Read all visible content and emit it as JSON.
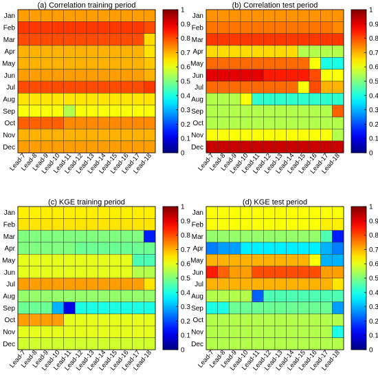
{
  "chart_data": [
    {
      "type": "heatmap",
      "title": "(a) Correlation training period",
      "rows": [
        "Jan",
        "Feb",
        "Mar",
        "Apr",
        "May",
        "Jun",
        "Jul",
        "Aug",
        "Sep",
        "Oct",
        "Nov",
        "Dec"
      ],
      "columns": [
        "Lead-7",
        "Lead-8",
        "Lead-9",
        "Lead-10",
        "Lead-11",
        "Lead-12",
        "Lead-13",
        "Lead-14",
        "Lead-15",
        "Lead-16",
        "Lead-17",
        "Lead-18"
      ],
      "colorbar": {
        "min": 0,
        "max": 1,
        "ticks": [
          "0",
          "0.1",
          "0.2",
          "0.3",
          "0.4",
          "0.5",
          "0.6",
          "0.7",
          "0.8",
          "0.9",
          "1"
        ]
      },
      "values": [
        [
          0.72,
          0.72,
          0.72,
          0.72,
          0.72,
          0.72,
          0.72,
          0.72,
          0.72,
          0.72,
          0.72,
          0.72
        ],
        [
          0.82,
          0.82,
          0.82,
          0.82,
          0.82,
          0.82,
          0.82,
          0.82,
          0.82,
          0.82,
          0.82,
          0.8
        ],
        [
          0.8,
          0.8,
          0.8,
          0.8,
          0.8,
          0.8,
          0.8,
          0.8,
          0.8,
          0.8,
          0.8,
          0.66
        ],
        [
          0.7,
          0.7,
          0.7,
          0.7,
          0.7,
          0.7,
          0.7,
          0.7,
          0.7,
          0.7,
          0.7,
          0.65
        ],
        [
          0.7,
          0.7,
          0.7,
          0.7,
          0.7,
          0.7,
          0.7,
          0.7,
          0.7,
          0.7,
          0.7,
          0.68
        ],
        [
          0.72,
          0.72,
          0.72,
          0.72,
          0.72,
          0.72,
          0.72,
          0.72,
          0.72,
          0.72,
          0.72,
          0.7
        ],
        [
          0.8,
          0.8,
          0.8,
          0.8,
          0.8,
          0.8,
          0.8,
          0.8,
          0.8,
          0.8,
          0.8,
          0.82
        ],
        [
          0.65,
          0.65,
          0.65,
          0.65,
          0.65,
          0.65,
          0.65,
          0.65,
          0.65,
          0.65,
          0.65,
          0.65
        ],
        [
          0.62,
          0.62,
          0.62,
          0.62,
          0.55,
          0.62,
          0.62,
          0.62,
          0.62,
          0.62,
          0.62,
          0.62
        ],
        [
          0.78,
          0.78,
          0.78,
          0.78,
          0.74,
          0.74,
          0.74,
          0.74,
          0.74,
          0.74,
          0.74,
          0.74
        ],
        [
          0.7,
          0.7,
          0.7,
          0.7,
          0.7,
          0.7,
          0.7,
          0.7,
          0.7,
          0.7,
          0.7,
          0.7
        ],
        [
          0.72,
          0.72,
          0.72,
          0.72,
          0.72,
          0.72,
          0.72,
          0.72,
          0.72,
          0.72,
          0.72,
          0.72
        ]
      ]
    },
    {
      "type": "heatmap",
      "title": "(b) Correlation test period",
      "rows": [
        "Jan",
        "Feb",
        "Mar",
        "Apr",
        "May",
        "Jun",
        "Jul",
        "Aug",
        "Sep",
        "Oct",
        "Nov",
        "Dec"
      ],
      "columns": [
        "Lead-7",
        "Lead-8",
        "Lead-9",
        "Lead-10",
        "Lead-11",
        "Lead-12",
        "Lead-13",
        "Lead-14",
        "Lead-15",
        "Lead-16",
        "Lead-17",
        "Lead-18"
      ],
      "colorbar": {
        "min": 0,
        "max": 1,
        "ticks": [
          "0",
          "0.1",
          "0.2",
          "0.3",
          "0.4",
          "0.5",
          "0.6",
          "0.7",
          "0.8",
          "0.9",
          "1"
        ]
      },
      "values": [
        [
          0.73,
          0.73,
          0.73,
          0.73,
          0.73,
          0.73,
          0.73,
          0.73,
          0.73,
          0.73,
          0.73,
          0.73
        ],
        [
          0.76,
          0.76,
          0.76,
          0.76,
          0.76,
          0.76,
          0.76,
          0.76,
          0.76,
          0.76,
          0.76,
          0.74
        ],
        [
          0.82,
          0.82,
          0.82,
          0.82,
          0.82,
          0.82,
          0.82,
          0.82,
          0.82,
          0.82,
          0.82,
          0.82
        ],
        [
          0.66,
          0.66,
          0.66,
          0.66,
          0.66,
          0.66,
          0.66,
          0.66,
          0.55,
          0.55,
          0.55,
          0.55
        ],
        [
          0.77,
          0.77,
          0.77,
          0.77,
          0.77,
          0.77,
          0.77,
          0.77,
          0.77,
          0.62,
          0.4,
          0.4
        ],
        [
          0.9,
          0.9,
          0.9,
          0.9,
          0.9,
          0.85,
          0.85,
          0.85,
          0.85,
          0.8,
          0.62,
          0.62
        ],
        [
          0.77,
          0.77,
          0.77,
          0.77,
          0.77,
          0.77,
          0.77,
          0.77,
          0.62,
          0.8,
          0.7,
          0.7
        ],
        [
          0.55,
          0.55,
          0.55,
          0.62,
          0.42,
          0.42,
          0.42,
          0.42,
          0.42,
          0.42,
          0.42,
          0.42
        ],
        [
          0.55,
          0.55,
          0.55,
          0.55,
          0.55,
          0.55,
          0.55,
          0.55,
          0.55,
          0.55,
          0.55,
          0.78
        ],
        [
          0.55,
          0.55,
          0.55,
          0.55,
          0.55,
          0.55,
          0.55,
          0.55,
          0.55,
          0.55,
          0.55,
          0.55
        ],
        [
          0.62,
          0.62,
          0.62,
          0.62,
          0.62,
          0.62,
          0.62,
          0.62,
          0.62,
          0.62,
          0.62,
          0.55
        ],
        [
          0.93,
          0.93,
          0.93,
          0.93,
          0.93,
          0.93,
          0.93,
          0.93,
          0.93,
          0.93,
          0.93,
          0.93
        ]
      ]
    },
    {
      "type": "heatmap",
      "title": "(c) KGE training period",
      "rows": [
        "Jan",
        "Feb",
        "Mar",
        "Apr",
        "May",
        "Jun",
        "Jul",
        "Aug",
        "Sep",
        "Oct",
        "Nov",
        "Dec"
      ],
      "columns": [
        "Lead-7",
        "Lead-8",
        "Lead-9",
        "Lead-10",
        "Lead-11",
        "Lead-12",
        "Lead-13",
        "Lead-14",
        "Lead-15",
        "Lead-16",
        "Lead-17",
        "Lead-18"
      ],
      "colorbar": {
        "min": 0,
        "max": 1,
        "ticks": [
          "0",
          "0.1",
          "0.2",
          "0.3",
          "0.4",
          "0.5",
          "0.6",
          "0.7",
          "0.8",
          "0.9",
          "1"
        ]
      },
      "values": [
        [
          0.64,
          0.64,
          0.64,
          0.64,
          0.64,
          0.64,
          0.64,
          0.64,
          0.64,
          0.64,
          0.64,
          0.64
        ],
        [
          0.65,
          0.65,
          0.65,
          0.65,
          0.65,
          0.65,
          0.65,
          0.65,
          0.65,
          0.65,
          0.65,
          0.65
        ],
        [
          0.5,
          0.5,
          0.5,
          0.5,
          0.5,
          0.5,
          0.5,
          0.5,
          0.5,
          0.5,
          0.5,
          0.15
        ],
        [
          0.5,
          0.5,
          0.5,
          0.5,
          0.5,
          0.48,
          0.48,
          0.48,
          0.48,
          0.48,
          0.48,
          0.48
        ],
        [
          0.6,
          0.6,
          0.6,
          0.6,
          0.6,
          0.6,
          0.6,
          0.6,
          0.6,
          0.6,
          0.45,
          0.45
        ],
        [
          0.6,
          0.6,
          0.6,
          0.6,
          0.6,
          0.6,
          0.6,
          0.6,
          0.6,
          0.6,
          0.55,
          0.55
        ],
        [
          0.72,
          0.72,
          0.72,
          0.72,
          0.72,
          0.72,
          0.72,
          0.72,
          0.72,
          0.72,
          0.72,
          0.65
        ],
        [
          0.52,
          0.52,
          0.52,
          0.52,
          0.52,
          0.52,
          0.52,
          0.52,
          0.52,
          0.52,
          0.52,
          0.52
        ],
        [
          0.48,
          0.48,
          0.48,
          0.3,
          0.1,
          0.4,
          0.4,
          0.4,
          0.4,
          0.4,
          0.4,
          0.4
        ],
        [
          0.72,
          0.72,
          0.72,
          0.72,
          0.6,
          0.6,
          0.6,
          0.6,
          0.6,
          0.6,
          0.6,
          0.6
        ],
        [
          0.6,
          0.6,
          0.6,
          0.6,
          0.6,
          0.6,
          0.6,
          0.6,
          0.6,
          0.6,
          0.6,
          0.6
        ],
        [
          0.58,
          0.58,
          0.58,
          0.58,
          0.58,
          0.58,
          0.58,
          0.58,
          0.58,
          0.58,
          0.58,
          0.58
        ]
      ]
    },
    {
      "type": "heatmap",
      "title": "(d) KGE test period",
      "rows": [
        "Jan",
        "Feb",
        "Mar",
        "Apr",
        "May",
        "Jun",
        "Jul",
        "Aug",
        "Sep",
        "Oct",
        "Nov",
        "Dec"
      ],
      "columns": [
        "Lead-7",
        "Lead-8",
        "Lead-9",
        "Lead-10",
        "Lead-11",
        "Lead-12",
        "Lead-13",
        "Lead-14",
        "Lead-15",
        "Lead-16",
        "Lead-17",
        "Lead-18"
      ],
      "colorbar": {
        "min": 0,
        "max": 1,
        "ticks": [
          "0",
          "0.1",
          "0.2",
          "0.3",
          "0.4",
          "0.5",
          "0.6",
          "0.7",
          "0.8",
          "0.9",
          "1"
        ]
      },
      "values": [
        [
          0.62,
          0.62,
          0.62,
          0.62,
          0.62,
          0.62,
          0.62,
          0.62,
          0.62,
          0.62,
          0.62,
          0.62
        ],
        [
          0.62,
          0.62,
          0.62,
          0.62,
          0.62,
          0.62,
          0.62,
          0.62,
          0.62,
          0.62,
          0.64,
          0.64
        ],
        [
          0.52,
          0.52,
          0.52,
          0.52,
          0.52,
          0.52,
          0.52,
          0.52,
          0.52,
          0.52,
          0.45,
          0.15
        ],
        [
          0.25,
          0.28,
          0.28,
          0.36,
          0.36,
          0.36,
          0.36,
          0.36,
          0.36,
          0.36,
          0.3,
          0.25
        ],
        [
          0.7,
          0.7,
          0.7,
          0.7,
          0.7,
          0.7,
          0.7,
          0.7,
          0.7,
          0.62,
          0.3,
          0.3
        ],
        [
          0.85,
          0.78,
          0.72,
          0.72,
          0.8,
          0.8,
          0.8,
          0.8,
          0.8,
          0.8,
          0.72,
          0.72
        ],
        [
          0.7,
          0.7,
          0.7,
          0.7,
          0.7,
          0.7,
          0.7,
          0.7,
          0.7,
          0.7,
          0.7,
          0.65
        ],
        [
          0.55,
          0.55,
          0.55,
          0.55,
          0.22,
          0.45,
          0.45,
          0.45,
          0.45,
          0.45,
          0.45,
          0.45
        ],
        [
          0.4,
          0.4,
          0.48,
          0.48,
          0.48,
          0.48,
          0.48,
          0.48,
          0.48,
          0.48,
          0.48,
          0.28
        ],
        [
          0.55,
          0.55,
          0.55,
          0.55,
          0.55,
          0.55,
          0.55,
          0.55,
          0.55,
          0.55,
          0.55,
          0.55
        ],
        [
          0.55,
          0.55,
          0.55,
          0.55,
          0.55,
          0.55,
          0.55,
          0.55,
          0.55,
          0.55,
          0.55,
          0.4
        ],
        [
          0.55,
          0.55,
          0.55,
          0.55,
          0.55,
          0.55,
          0.55,
          0.55,
          0.55,
          0.55,
          0.55,
          0.55
        ]
      ]
    }
  ]
}
